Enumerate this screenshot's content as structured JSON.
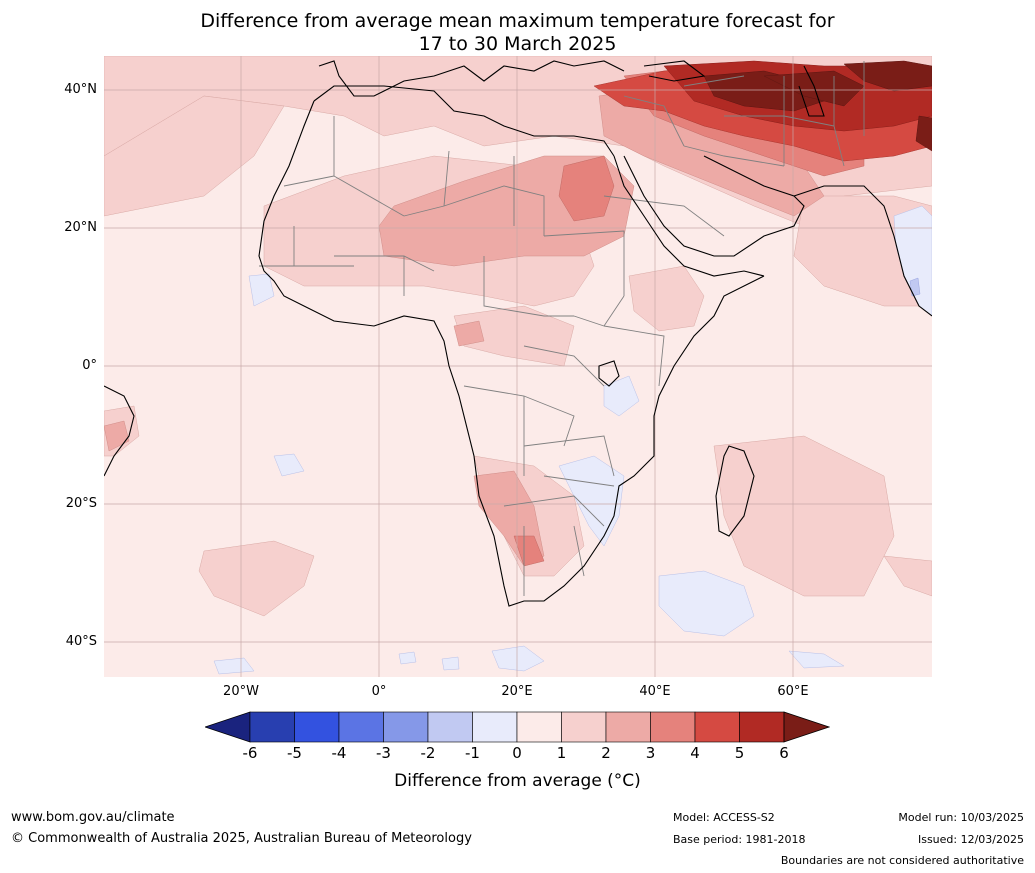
{
  "title": {
    "line1": "Difference from average mean maximum temperature forecast for",
    "line2": "17 to 30 March 2025"
  },
  "map": {
    "lat_labels": [
      "40°N",
      "20°N",
      "0°",
      "20°S",
      "40°S"
    ],
    "lon_labels": [
      "20°W",
      "0°",
      "20°E",
      "40°E",
      "60°E"
    ],
    "background_color": "#fcebe9",
    "water_color": "#fcebe9"
  },
  "colorbar": {
    "ticks": [
      "-6",
      "-5",
      "-4",
      "-3",
      "-2",
      "-1",
      "0",
      "1",
      "2",
      "3",
      "4",
      "5",
      "6"
    ],
    "colors": [
      "#1a237e",
      "#283fb0",
      "#3352e0",
      "#5b74e4",
      "#8598e8",
      "#c1c9f2",
      "#e8ebfb",
      "#fcebe9",
      "#f6d0ce",
      "#edaaa6",
      "#e5827c",
      "#d54a42",
      "#b12a24",
      "#7a1d17"
    ],
    "label": "Difference from average (°C)"
  },
  "footer": {
    "website": "www.bom.gov.au/climate",
    "copyright": "© Commonwealth of Australia 2025, Australian Bureau of Meteorology",
    "model": "Model: ACCESS-S2",
    "base_period": "Base period: 1981-2018",
    "model_run": "Model run: 10/03/2025",
    "issued": "Issued: 12/03/2025",
    "disclaimer": "Boundaries are not considered authoritative"
  }
}
